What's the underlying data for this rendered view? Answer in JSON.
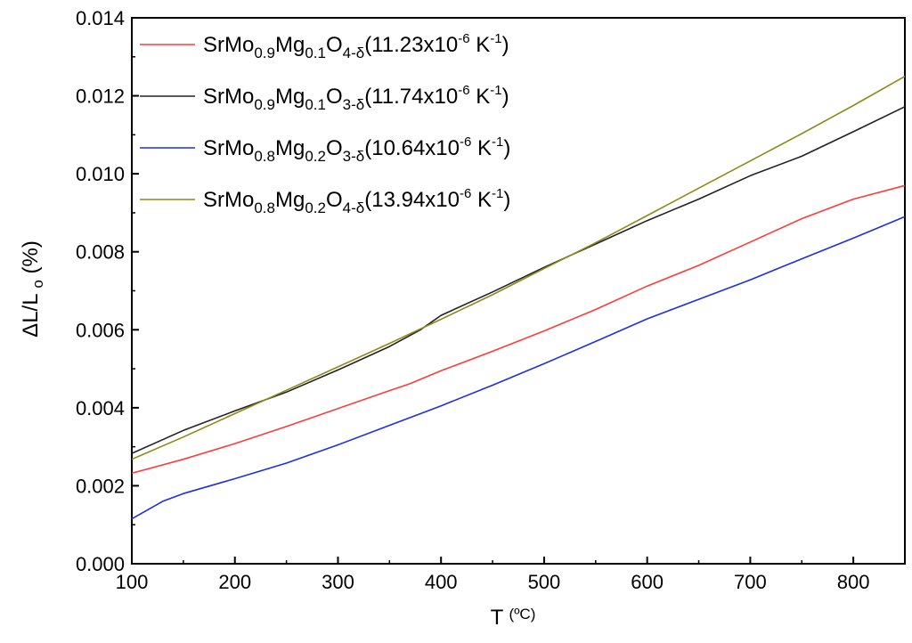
{
  "chart_data": {
    "type": "line",
    "xlabel": "T",
    "xlabel_unit": "(ºC)",
    "ylabel_main": "ΔL/L",
    "ylabel_sub": "o",
    "ylabel_unit": "(%)",
    "xlim": [
      100,
      850
    ],
    "ylim": [
      0.0,
      0.014
    ],
    "x_ticks": [
      100,
      200,
      300,
      400,
      500,
      600,
      700,
      800
    ],
    "y_ticks": [
      "0.000",
      "0.002",
      "0.004",
      "0.006",
      "0.008",
      "0.010",
      "0.012",
      "0.014"
    ],
    "legend_position": "top-left",
    "series": [
      {
        "legend": {
          "base1": "SrMo",
          "sub1": "0.9",
          "base2": "Mg",
          "sub2": "0.1",
          "base3": "O",
          "sub3": "4-δ",
          "coef": "(11.23x10",
          "exp": "-6",
          "unit": " K",
          "unit_exp": "-1",
          "close": ")"
        },
        "color": "#ff3b3b",
        "points": [
          [
            100,
            0.00232
          ],
          [
            150,
            0.00268
          ],
          [
            200,
            0.00308
          ],
          [
            250,
            0.00352
          ],
          [
            300,
            0.00398
          ],
          [
            350,
            0.00444
          ],
          [
            370,
            0.00462
          ],
          [
            400,
            0.00495
          ],
          [
            450,
            0.00545
          ],
          [
            500,
            0.00597
          ],
          [
            550,
            0.00652
          ],
          [
            600,
            0.00712
          ],
          [
            650,
            0.00765
          ],
          [
            700,
            0.00825
          ],
          [
            750,
            0.00885
          ],
          [
            800,
            0.00935
          ],
          [
            850,
            0.0097
          ]
        ]
      },
      {
        "legend": {
          "base1": "SrMo",
          "sub1": "0.9",
          "base2": "Mg",
          "sub2": "0.1",
          "base3": "O",
          "sub3": "3-δ",
          "coef": "(11.74x10",
          "exp": "-6",
          "unit": " K",
          "unit_exp": "-1",
          "close": ")"
        },
        "color": "#222222",
        "points": [
          [
            100,
            0.00283
          ],
          [
            150,
            0.00342
          ],
          [
            200,
            0.00392
          ],
          [
            250,
            0.0044
          ],
          [
            300,
            0.00497
          ],
          [
            350,
            0.00557
          ],
          [
            380,
            0.006
          ],
          [
            400,
            0.00637
          ],
          [
            450,
            0.00697
          ],
          [
            500,
            0.0076
          ],
          [
            550,
            0.0082
          ],
          [
            600,
            0.0088
          ],
          [
            650,
            0.00935
          ],
          [
            700,
            0.00995
          ],
          [
            750,
            0.01045
          ],
          [
            800,
            0.01108
          ],
          [
            850,
            0.01172
          ]
        ]
      },
      {
        "legend": {
          "base1": "SrMo",
          "sub1": "0.8",
          "base2": "Mg",
          "sub2": "0.2",
          "base3": "O",
          "sub3": "3-δ",
          "coef": "(10.64x10",
          "exp": "-6",
          "unit": " K",
          "unit_exp": "-1",
          "close": ")"
        },
        "color": "#1f2ee0",
        "points": [
          [
            100,
            0.00115
          ],
          [
            130,
            0.0016
          ],
          [
            150,
            0.0018
          ],
          [
            200,
            0.00218
          ],
          [
            250,
            0.00258
          ],
          [
            300,
            0.00305
          ],
          [
            350,
            0.00355
          ],
          [
            400,
            0.00405
          ],
          [
            450,
            0.00458
          ],
          [
            500,
            0.00513
          ],
          [
            550,
            0.0057
          ],
          [
            600,
            0.00628
          ],
          [
            650,
            0.00678
          ],
          [
            700,
            0.00728
          ],
          [
            750,
            0.00782
          ],
          [
            800,
            0.00835
          ],
          [
            850,
            0.0089
          ]
        ]
      },
      {
        "legend": {
          "base1": "SrMo",
          "sub1": "0.8",
          "base2": "Mg",
          "sub2": "0.2",
          "base3": "O",
          "sub3": "4-δ",
          "coef": "(13.94x10",
          "exp": "-6",
          "unit": " K",
          "unit_exp": "-1",
          "close": ")"
        },
        "color": "#8b8b1a",
        "points": [
          [
            100,
            0.00268
          ],
          [
            150,
            0.00325
          ],
          [
            200,
            0.00385
          ],
          [
            250,
            0.00445
          ],
          [
            300,
            0.00505
          ],
          [
            350,
            0.00565
          ],
          [
            400,
            0.00627
          ],
          [
            450,
            0.0069
          ],
          [
            500,
            0.00757
          ],
          [
            550,
            0.00823
          ],
          [
            600,
            0.00893
          ],
          [
            650,
            0.00963
          ],
          [
            700,
            0.01033
          ],
          [
            750,
            0.01103
          ],
          [
            800,
            0.01175
          ],
          [
            850,
            0.0125
          ]
        ]
      }
    ]
  }
}
